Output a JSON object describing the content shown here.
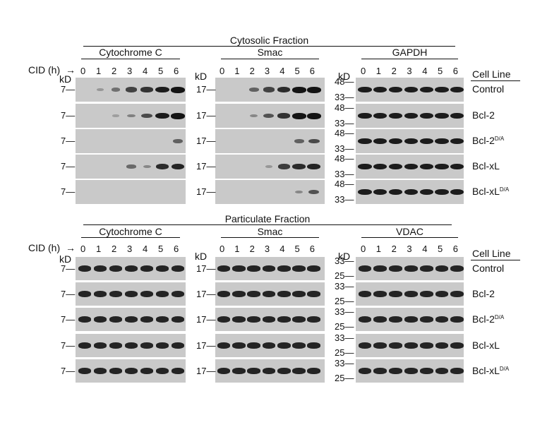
{
  "sections": [
    {
      "title": "Cytosolic Fraction",
      "blocks": [
        {
          "label": "Cytochrome C",
          "mw": [
            [
              "7"
            ],
            [
              "7"
            ],
            [
              "7"
            ],
            [
              "7"
            ],
            [
              "7"
            ]
          ],
          "bands": [
            [
              0,
              0.15,
              0.4,
              0.7,
              0.8,
              0.95,
              1
            ],
            [
              0,
              0,
              0.1,
              0.3,
              0.65,
              0.95,
              1
            ],
            [
              0,
              0,
              0,
              0,
              0,
              0,
              0.5
            ],
            [
              0,
              0,
              0,
              0.45,
              0.25,
              0.85,
              0.9
            ],
            [
              0,
              0,
              0,
              0,
              0,
              0,
              0
            ]
          ]
        },
        {
          "label": "Smac",
          "mw": [
            [
              "17"
            ],
            [
              "17"
            ],
            [
              "17"
            ],
            [
              "17"
            ],
            [
              "17"
            ]
          ],
          "bands": [
            [
              0,
              0,
              0.5,
              0.7,
              0.85,
              1,
              1
            ],
            [
              0,
              0,
              0.25,
              0.6,
              0.8,
              1,
              1
            ],
            [
              0,
              0,
              0,
              0,
              0,
              0.5,
              0.65
            ],
            [
              0,
              0,
              0,
              0.15,
              0.75,
              0.85,
              0.9
            ],
            [
              0,
              0,
              0,
              0,
              0,
              0.25,
              0.6
            ]
          ]
        },
        {
          "label": "GAPDH",
          "mw": [
            [
              "48",
              "33"
            ],
            [
              "48",
              "33"
            ],
            [
              "48",
              "33"
            ],
            [
              "48",
              "33"
            ],
            [
              "48",
              "33"
            ]
          ],
          "bands": [
            [
              0.95,
              0.95,
              0.95,
              0.95,
              0.95,
              0.95,
              0.95
            ],
            [
              0.95,
              0.95,
              0.95,
              0.95,
              0.95,
              0.95,
              0.95
            ],
            [
              0.95,
              0.95,
              0.95,
              0.95,
              0.95,
              0.95,
              0.95
            ],
            [
              0.95,
              0.95,
              0.95,
              0.95,
              0.95,
              0.95,
              0.95
            ],
            [
              0.95,
              0.95,
              0.95,
              0.95,
              0.95,
              0.95,
              0.95
            ]
          ]
        }
      ]
    },
    {
      "title": "Particulate Fraction",
      "blocks": [
        {
          "label": "Cytochrome C",
          "mw": [
            [
              "7"
            ],
            [
              "7"
            ],
            [
              "7"
            ],
            [
              "7"
            ],
            [
              "7"
            ]
          ],
          "bands": [
            [
              0.9,
              0.9,
              0.9,
              0.9,
              0.9,
              0.9,
              0.9
            ],
            [
              0.9,
              0.9,
              0.9,
              0.9,
              0.9,
              0.9,
              0.9
            ],
            [
              0.9,
              0.9,
              0.9,
              0.9,
              0.9,
              0.9,
              0.9
            ],
            [
              0.9,
              0.9,
              0.9,
              0.9,
              0.9,
              0.9,
              0.9
            ],
            [
              0.9,
              0.9,
              0.9,
              0.9,
              0.9,
              0.9,
              0.9
            ]
          ]
        },
        {
          "label": "Smac",
          "mw": [
            [
              "17"
            ],
            [
              "17"
            ],
            [
              "17"
            ],
            [
              "17"
            ],
            [
              "17"
            ]
          ],
          "bands": [
            [
              0.9,
              0.9,
              0.9,
              0.9,
              0.9,
              0.9,
              0.9
            ],
            [
              0.9,
              0.9,
              0.9,
              0.9,
              0.9,
              0.9,
              0.9
            ],
            [
              0.9,
              0.9,
              0.9,
              0.9,
              0.9,
              0.9,
              0.9
            ],
            [
              0.9,
              0.9,
              0.9,
              0.9,
              0.9,
              0.9,
              0.9
            ],
            [
              0.9,
              0.9,
              0.9,
              0.9,
              0.9,
              0.9,
              0.9
            ]
          ]
        },
        {
          "label": "VDAC",
          "mw": [
            [
              "33",
              "25"
            ],
            [
              "33",
              "25"
            ],
            [
              "33",
              "25"
            ],
            [
              "33",
              "25"
            ],
            [
              "33",
              "25"
            ]
          ],
          "bands": [
            [
              0.9,
              0.9,
              0.9,
              0.9,
              0.9,
              0.9,
              0.9
            ],
            [
              0.9,
              0.9,
              0.9,
              0.9,
              0.9,
              0.9,
              0.9
            ],
            [
              0.9,
              0.9,
              0.9,
              0.9,
              0.9,
              0.9,
              0.9
            ],
            [
              0.9,
              0.9,
              0.9,
              0.9,
              0.9,
              0.9,
              0.9
            ],
            [
              0.9,
              0.9,
              0.9,
              0.9,
              0.9,
              0.9,
              0.9
            ]
          ]
        }
      ]
    }
  ],
  "time_points": [
    "0",
    "1",
    "2",
    "3",
    "4",
    "5",
    "6"
  ],
  "cid_label": "CID (h)",
  "cid_arrow": "→",
  "kd_label": "kD",
  "cell_line_header": "Cell Line",
  "cell_lines": [
    {
      "name": "Control",
      "sup": ""
    },
    {
      "name": "Bcl-2",
      "sup": ""
    },
    {
      "name": "Bcl-2",
      "sup": "D/A"
    },
    {
      "name": "Bcl-xL",
      "sup": ""
    },
    {
      "name": "Bcl-xL",
      "sup": "D/A"
    }
  ],
  "colors": {
    "membrane": "#c9c9c9",
    "band": "#141414",
    "text": "#111111"
  }
}
